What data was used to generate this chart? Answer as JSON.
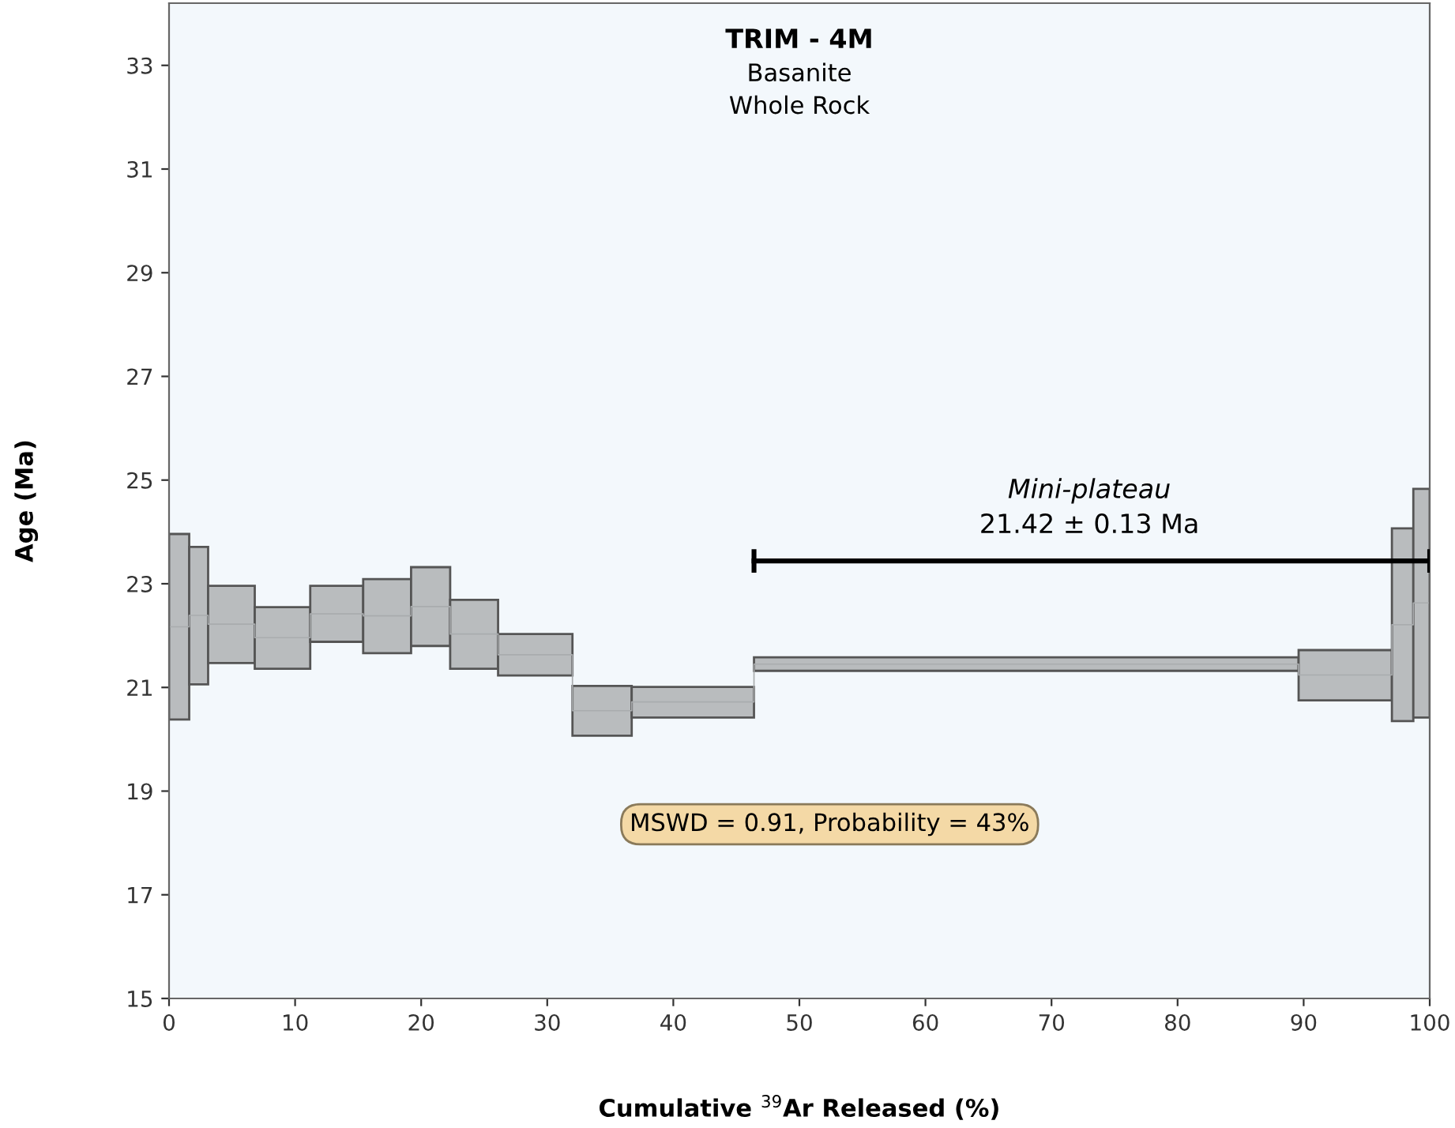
{
  "chart_data": {
    "type": "step",
    "title": "TRIM - 4M",
    "subtitle": "Basanite\nWhole Rock",
    "xlabel": "Cumulative $^{39}$Ar Released (%)",
    "ylabel": "Age (Ma)",
    "xlim": [
      0,
      100
    ],
    "ylim": [
      15,
      34.2
    ],
    "xticks": [
      0,
      10,
      20,
      30,
      40,
      50,
      60,
      70,
      80,
      90,
      100
    ],
    "yticks": [
      15,
      17,
      19,
      21,
      23,
      25,
      27,
      29,
      31,
      33
    ],
    "grid": false,
    "series": [
      {
        "color": "#b9bcbe",
        "x": [
          0,
          1.6,
          3.1,
          6.8,
          11.2,
          15.4,
          19.2,
          22.3,
          26.1,
          32.0,
          36.7,
          46.4,
          89.6,
          97.0,
          98.7,
          100
        ],
        "values": [
          22.17,
          22.39,
          22.22,
          21.96,
          22.42,
          22.38,
          22.56,
          22.03,
          21.63,
          20.55,
          20.72,
          21.45,
          21.24,
          22.21,
          22.63,
          22.63
        ],
        "lower": [
          20.38,
          21.06,
          21.47,
          21.36,
          21.88,
          21.66,
          21.8,
          21.36,
          21.23,
          20.07,
          20.42,
          21.32,
          20.75,
          20.35,
          20.42,
          20.42
        ],
        "upper": [
          23.96,
          23.71,
          22.96,
          22.55,
          22.96,
          23.09,
          23.32,
          22.69,
          22.03,
          21.03,
          21.01,
          21.58,
          21.72,
          24.07,
          24.83,
          24.83
        ]
      },
      {
        "type": "line",
        "color": "#000000",
        "x": [
          46.4,
          100
        ],
        "values": [
          23.44,
          23.44
        ]
      }
    ],
    "annotations": [
      "Mini-plateau",
      "21.42 ± 0.13 Ma",
      "MSWD = 0.91, Probability = 43%"
    ]
  }
}
